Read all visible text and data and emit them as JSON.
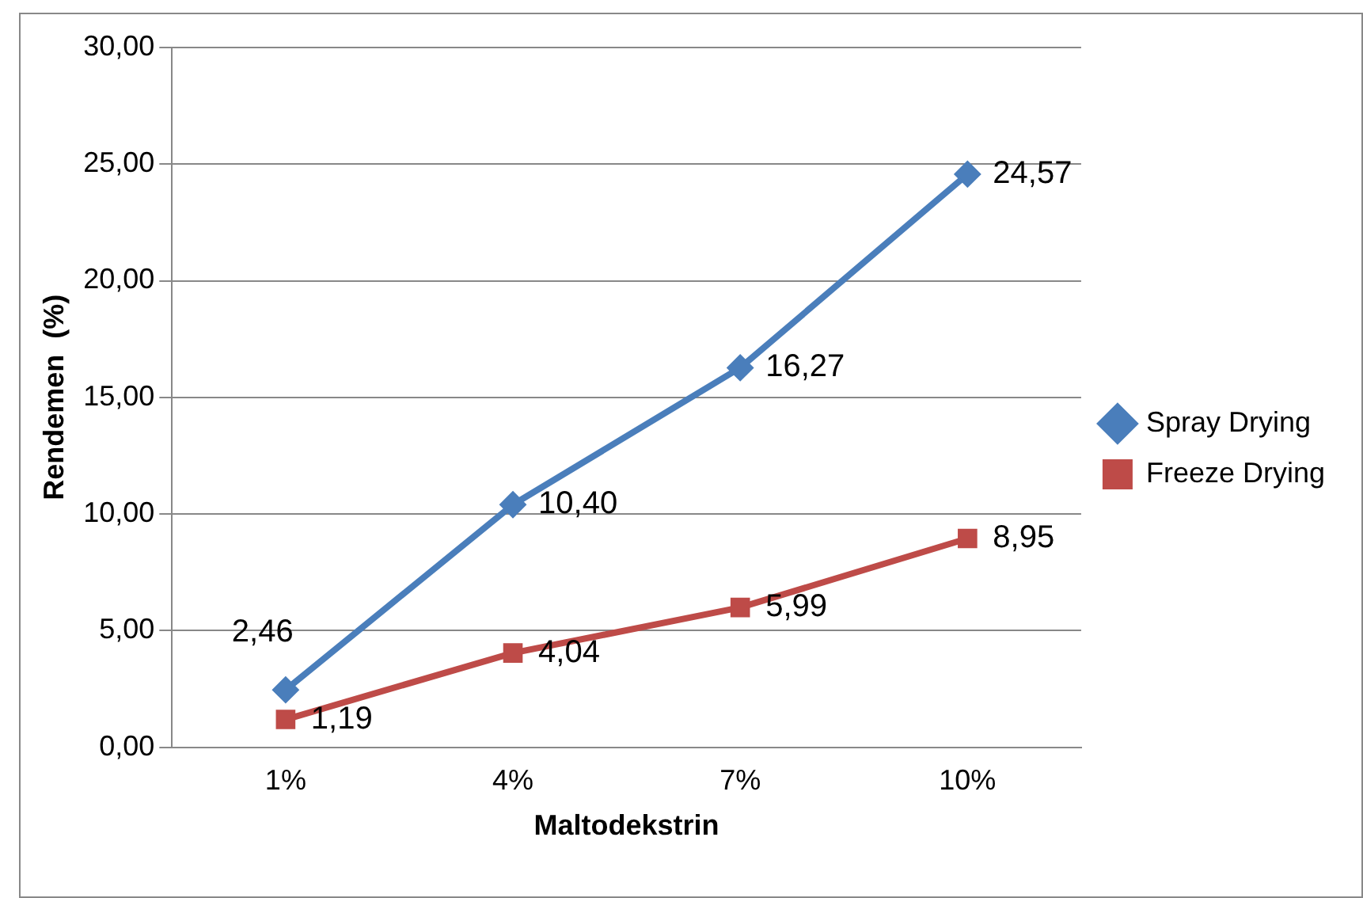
{
  "chart_data": {
    "type": "line",
    "xlabel": "Maltodekstrin",
    "ylabel": "Rendemen  (%)",
    "categories": [
      "1%",
      "4%",
      "7%",
      "10%"
    ],
    "series": [
      {
        "name": "Spray Drying",
        "color": "#4a7ebb",
        "marker": "diamond",
        "values": [
          2.46,
          10.4,
          16.27,
          24.57
        ],
        "value_labels": [
          "2,46",
          "10,40",
          "16,27",
          "24,57"
        ]
      },
      {
        "name": "Freeze Drying",
        "color": "#be4b48",
        "marker": "square",
        "values": [
          1.19,
          4.04,
          5.99,
          8.95
        ],
        "value_labels": [
          "1,19",
          "4,04",
          "5,99",
          "8,95"
        ]
      }
    ],
    "ylim": [
      0,
      30
    ],
    "yticks": [
      {
        "value": 0,
        "label": "0,00"
      },
      {
        "value": 5,
        "label": "5,00"
      },
      {
        "value": 10,
        "label": "10,00"
      },
      {
        "value": 15,
        "label": "15,00"
      },
      {
        "value": 20,
        "label": "20,00"
      },
      {
        "value": 25,
        "label": "25,00"
      },
      {
        "value": 30,
        "label": "30,00"
      }
    ],
    "grid": "y",
    "legend": "right",
    "line_style": "solid"
  }
}
